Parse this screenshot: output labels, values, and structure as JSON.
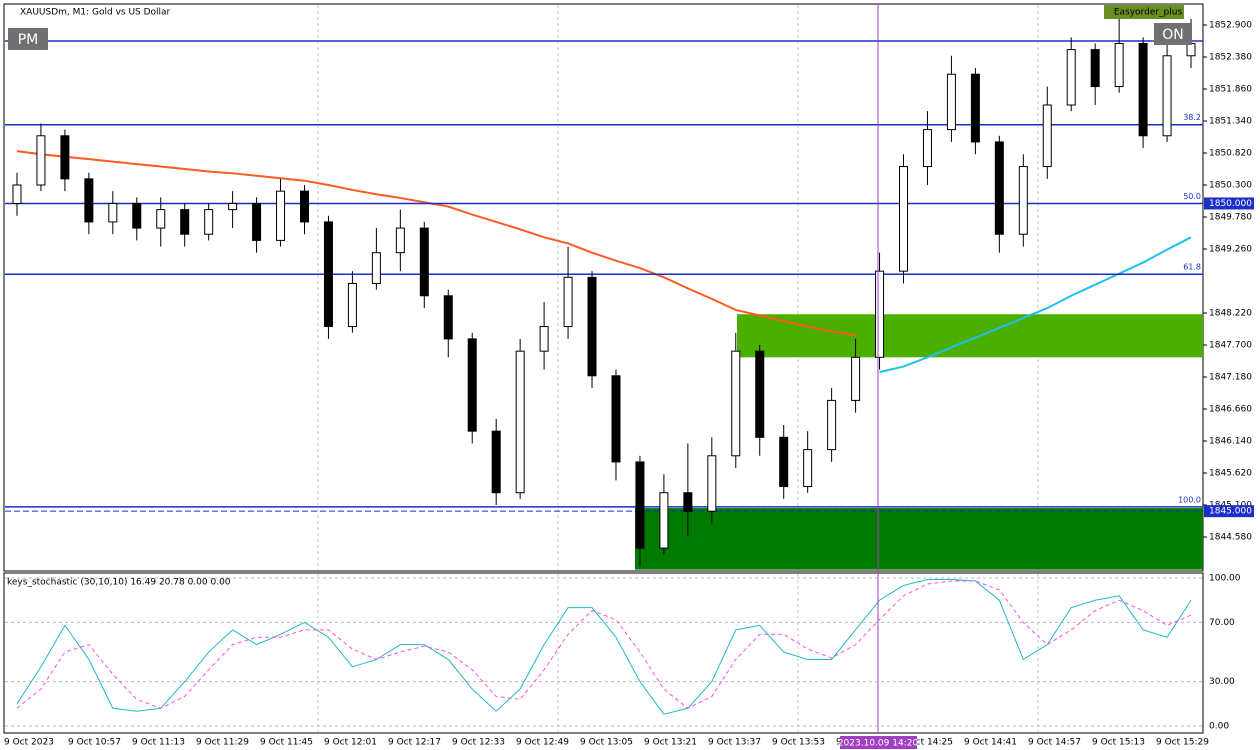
{
  "ui": {
    "buttons": [
      "PM",
      "ON"
    ],
    "panel": "Easyorder_plus",
    "crosshair_time": "2023.10.09 14:20"
  },
  "chart_data": [
    {
      "type": "candlestick",
      "title": "XAUUSDm, M1:  Gold vs US Dollar",
      "open": [
        1850.0,
        1850.3,
        1851.1,
        1850.4,
        1849.7,
        1850.0,
        1849.6,
        1849.9,
        1849.5,
        1849.9,
        1850.0,
        1849.4,
        1850.2,
        1849.7,
        1848.0,
        1848.7,
        1849.2,
        1849.6,
        1848.5,
        1847.8,
        1846.3,
        1845.3,
        1847.6,
        1848.0,
        1848.8,
        1847.2,
        1845.8,
        1844.4,
        1845.3,
        1845.0,
        1845.9,
        1847.6,
        1846.2,
        1845.4,
        1846.0,
        1846.8,
        1847.5,
        1848.9,
        1850.6,
        1851.2,
        1852.1,
        1851.0,
        1849.5,
        1850.6,
        1851.6,
        1852.5,
        1851.9,
        1852.6,
        1851.1,
        1852.4
      ],
      "high": [
        1850.5,
        1851.3,
        1851.2,
        1850.5,
        1850.2,
        1850.1,
        1850.1,
        1850.0,
        1850.0,
        1850.2,
        1850.1,
        1850.4,
        1850.3,
        1849.8,
        1848.9,
        1849.6,
        1849.9,
        1849.7,
        1848.6,
        1847.9,
        1846.5,
        1847.8,
        1848.4,
        1849.3,
        1848.9,
        1847.3,
        1845.9,
        1845.6,
        1846.1,
        1846.2,
        1847.9,
        1847.7,
        1846.4,
        1846.3,
        1847.0,
        1847.8,
        1849.2,
        1850.8,
        1851.5,
        1852.4,
        1852.2,
        1851.1,
        1850.8,
        1851.9,
        1852.7,
        1852.6,
        1853.0,
        1852.7,
        1852.6,
        1853.0
      ],
      "low": [
        1849.8,
        1850.2,
        1850.2,
        1849.5,
        1849.5,
        1849.4,
        1849.3,
        1849.3,
        1849.4,
        1849.6,
        1849.2,
        1849.3,
        1849.5,
        1847.8,
        1847.9,
        1848.6,
        1848.9,
        1848.3,
        1847.5,
        1846.1,
        1845.1,
        1845.2,
        1847.3,
        1847.8,
        1847.0,
        1845.5,
        1844.1,
        1844.3,
        1844.6,
        1844.8,
        1845.7,
        1845.9,
        1845.2,
        1845.3,
        1845.8,
        1846.6,
        1847.3,
        1848.7,
        1850.3,
        1851.0,
        1850.8,
        1849.2,
        1849.3,
        1850.4,
        1851.5,
        1851.6,
        1851.8,
        1850.9,
        1851.0,
        1852.2
      ],
      "close": [
        1850.3,
        1851.1,
        1850.4,
        1849.7,
        1850.0,
        1849.6,
        1849.9,
        1849.5,
        1849.9,
        1850.0,
        1849.4,
        1850.2,
        1849.7,
        1848.0,
        1848.7,
        1849.2,
        1849.6,
        1848.5,
        1847.8,
        1846.3,
        1845.3,
        1847.6,
        1848.0,
        1848.8,
        1847.2,
        1845.8,
        1844.4,
        1845.3,
        1845.0,
        1845.9,
        1847.6,
        1846.2,
        1845.4,
        1846.0,
        1846.8,
        1847.5,
        1848.9,
        1850.6,
        1851.2,
        1852.1,
        1851.0,
        1849.5,
        1850.6,
        1851.6,
        1852.5,
        1851.9,
        1852.6,
        1851.1,
        1852.4,
        1852.6
      ],
      "series": [
        {
          "color": "#ff5a1f",
          "values": [
            1850.85,
            1850.8,
            1850.76,
            1850.72,
            1850.68,
            1850.64,
            1850.6,
            1850.56,
            1850.52,
            1850.49,
            1850.45,
            1850.41,
            1850.37,
            1850.3,
            1850.22,
            1850.15,
            1850.09,
            1850.02,
            1849.95,
            1849.82,
            1849.7,
            1849.58,
            1849.45,
            1849.35,
            1849.2,
            1849.07,
            1848.95,
            1848.8,
            1848.62,
            1848.45,
            1848.27,
            1848.18,
            1848.09,
            1848.0,
            1847.92,
            1847.86,
            null,
            null,
            null,
            null,
            null,
            null,
            null,
            null,
            null,
            null,
            null,
            null,
            null,
            null
          ]
        },
        {
          "color": "#1ec0f0",
          "values": [
            null,
            null,
            null,
            null,
            null,
            null,
            null,
            null,
            null,
            null,
            null,
            null,
            null,
            null,
            null,
            null,
            null,
            null,
            null,
            null,
            null,
            null,
            null,
            null,
            null,
            null,
            null,
            null,
            null,
            null,
            null,
            null,
            null,
            null,
            null,
            null,
            1847.26,
            1847.35,
            1847.5,
            1847.66,
            1847.82,
            1847.98,
            1848.14,
            1848.3,
            1848.5,
            1848.68,
            1848.86,
            1849.04,
            1849.25,
            1849.45
          ]
        }
      ],
      "levels": [
        1852.64,
        {
          "value": 1851.28,
          "label": "38.2"
        },
        {
          "value": 1850.0,
          "label": "50.0"
        },
        {
          "value": 1848.85,
          "label": "61.8"
        },
        {
          "value": 1845.07,
          "label": "100.0"
        }
      ],
      "price_labels": [
        {
          "value": 1850.0,
          "label": "1850.000"
        },
        {
          "value": 1845.0,
          "label": "1845.000"
        }
      ],
      "zones": [
        {
          "low": 1847.5,
          "high": 1848.2,
          "color": "#4caf00"
        },
        {
          "low": 1844.05,
          "high": 1845.05,
          "color": "#007a00"
        }
      ],
      "ylim": [
        1844.044,
        1853.225
      ],
      "yticks": [
        {
          "value": 1852.9,
          "label": "1852.900"
        },
        {
          "value": 1852.38,
          "label": "1852.380"
        },
        {
          "value": 1851.86,
          "label": "1851.860"
        },
        {
          "value": 1851.34,
          "label": "1851.340"
        },
        {
          "value": 1850.82,
          "label": "1850.820"
        },
        {
          "value": 1850.3,
          "label": "1850.300"
        },
        {
          "value": 1849.78,
          "label": "1849.780"
        },
        {
          "value": 1849.26,
          "label": "1849.260"
        },
        {
          "value": 1848.22,
          "label": "1848.220"
        },
        {
          "value": 1847.7,
          "label": "1847.700"
        },
        {
          "value": 1847.18,
          "label": "1847.180"
        },
        {
          "value": 1846.66,
          "label": "1846.660"
        },
        {
          "value": 1846.14,
          "label": "1846.140"
        },
        {
          "value": 1845.62,
          "label": "1845.620"
        },
        {
          "value": 1845.1,
          "label": "1845.100"
        },
        {
          "value": 1844.58,
          "label": "1844.580"
        }
      ]
    },
    {
      "type": "line",
      "title": "keys_stochastic (30,10,10) 16.49 20.78 0.00 0.00",
      "series": [
        {
          "color": "#20b8c8",
          "dash": false,
          "values": [
            15,
            40,
            68,
            45,
            12,
            10,
            12,
            30,
            50,
            65,
            55,
            62,
            70,
            60,
            40,
            45,
            55,
            55,
            45,
            25,
            10,
            25,
            55,
            80,
            80,
            60,
            30,
            8,
            12,
            30,
            65,
            68,
            50,
            45,
            45,
            65,
            85,
            95,
            99,
            99,
            98,
            85,
            45,
            55,
            80,
            85,
            88,
            65,
            60,
            85
          ]
        },
        {
          "color": "#ff50e0",
          "dash": true,
          "values": [
            12,
            25,
            50,
            55,
            35,
            18,
            12,
            20,
            38,
            55,
            60,
            60,
            65,
            65,
            52,
            45,
            50,
            54,
            50,
            38,
            20,
            18,
            38,
            62,
            78,
            72,
            50,
            25,
            12,
            20,
            45,
            62,
            62,
            52,
            46,
            55,
            72,
            88,
            96,
            98,
            98,
            92,
            70,
            55,
            65,
            78,
            85,
            78,
            68,
            75
          ]
        }
      ],
      "ylim": [
        -4.7,
        103.4
      ],
      "yticks": [
        {
          "value": 0,
          "label": "0.00"
        },
        {
          "value": 30,
          "label": "30.00"
        },
        {
          "value": 70,
          "label": "70.00"
        },
        {
          "value": 100,
          "label": "100.00"
        }
      ],
      "x_labels": [
        "9 Oct 2023",
        "9 Oct 10:57",
        "9 Oct 11:13",
        "9 Oct 11:29",
        "9 Oct 11:45",
        "9 Oct 12:01",
        "9 Oct 12:17",
        "9 Oct 12:33",
        "9 Oct 12:49",
        "9 Oct 13:05",
        "9 Oct 13:21",
        "9 Oct 13:37",
        "9 Oct 13:53",
        "9 Oct 14:09",
        "9 Oct 14:25",
        "9 Oct 14:41",
        "9 Oct 14:57",
        "9 Oct 15:13",
        "9 Oct 15:29"
      ]
    }
  ]
}
